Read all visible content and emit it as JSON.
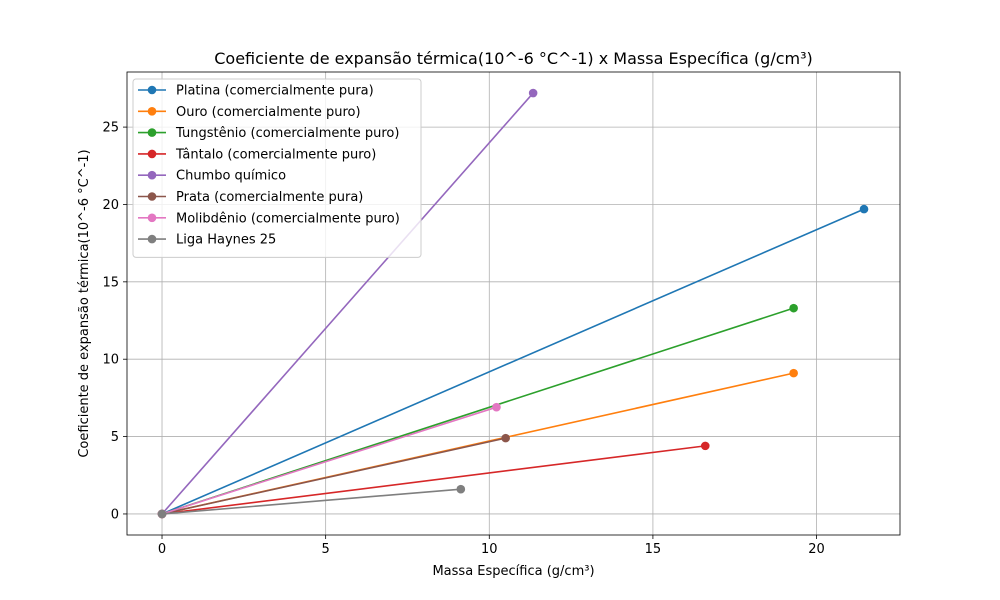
{
  "chart_data": {
    "type": "line",
    "title": "Coeficiente de expansão térmica(10^-6 °C^-1) x Massa Específica (g/cm³)",
    "xlabel": "Massa Específica (g/cm³)",
    "ylabel": "Coeficiente de expansão térmica(10^-6 °C^-1)",
    "xlim": [
      -1.07,
      22.55
    ],
    "ylim": [
      -1.36,
      28.56
    ],
    "xticks": [
      0,
      5,
      10,
      15,
      20
    ],
    "yticks": [
      0,
      5,
      10,
      15,
      20,
      25
    ],
    "grid": true,
    "legend_position": "top-left",
    "series": [
      {
        "name": "Platina (comercialmente pura)",
        "color": "#1f77b4",
        "points": [
          [
            0,
            0
          ],
          [
            21.45,
            19.7
          ]
        ]
      },
      {
        "name": "Ouro (comercialmente puro)",
        "color": "#ff7f0e",
        "points": [
          [
            0,
            0
          ],
          [
            19.3,
            9.1
          ]
        ]
      },
      {
        "name": "Tungstênio (comercialmente puro)",
        "color": "#2ca02c",
        "points": [
          [
            0,
            0
          ],
          [
            19.3,
            13.3
          ]
        ]
      },
      {
        "name": "Tântalo (comercialmente puro)",
        "color": "#d62728",
        "points": [
          [
            0,
            0
          ],
          [
            16.6,
            4.4
          ]
        ]
      },
      {
        "name": "Chumbo químico",
        "color": "#9467bd",
        "points": [
          [
            0,
            0
          ],
          [
            11.34,
            27.2
          ]
        ]
      },
      {
        "name": "Prata (comercialmente pura)",
        "color": "#8c564b",
        "points": [
          [
            0,
            0
          ],
          [
            10.5,
            4.9
          ]
        ]
      },
      {
        "name": "Molibdênio (comercialmente puro)",
        "color": "#e377c2",
        "points": [
          [
            0,
            0
          ],
          [
            10.22,
            6.9
          ]
        ]
      },
      {
        "name": "Liga Haynes 25",
        "color": "#7f7f7f",
        "points": [
          [
            0,
            0
          ],
          [
            9.13,
            1.6
          ]
        ]
      }
    ]
  }
}
